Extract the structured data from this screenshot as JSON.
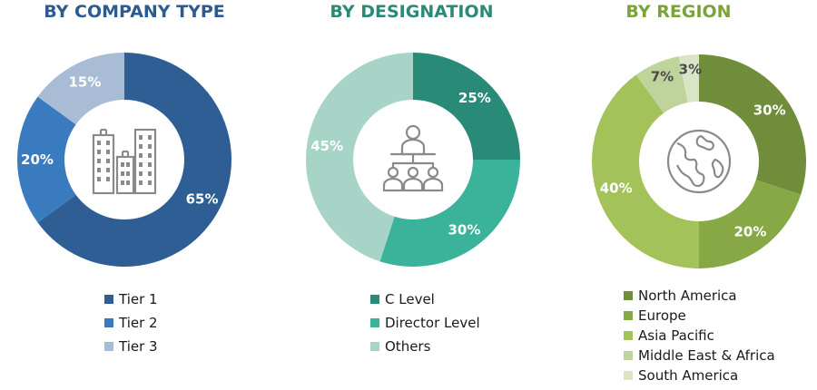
{
  "colors": {
    "company_title": "#2b5b8f",
    "designation_title": "#2a8a78",
    "region_title": "#7aa33a"
  },
  "chart_data": [
    {
      "type": "pie",
      "title": "BY COMPANY TYPE",
      "center_icon": "buildings-icon",
      "series": [
        {
          "name": "Tier 1",
          "value": 65,
          "label": "65%",
          "color": "#2e5e94"
        },
        {
          "name": "Tier 2",
          "value": 20,
          "label": "20%",
          "color": "#3a7bbf"
        },
        {
          "name": "Tier 3",
          "value": 15,
          "label": "15%",
          "color": "#a9bcd6"
        }
      ]
    },
    {
      "type": "pie",
      "title": "BY DESIGNATION",
      "center_icon": "presenter-audience-icon",
      "series": [
        {
          "name": "C Level",
          "value": 25,
          "label": "25%",
          "color": "#2a8a78"
        },
        {
          "name": "Director Level",
          "value": 30,
          "label": "30%",
          "color": "#3bb39a"
        },
        {
          "name": "Others",
          "value": 45,
          "label": "45%",
          "color": "#a8d4c8"
        }
      ]
    },
    {
      "type": "pie",
      "title": "BY REGION",
      "center_icon": "globe-icon",
      "series": [
        {
          "name": "North America",
          "value": 30,
          "label": "30%",
          "color": "#6f8d3a"
        },
        {
          "name": "Europe",
          "value": 20,
          "label": "20%",
          "color": "#86a845"
        },
        {
          "name": "Asia Pacific",
          "value": 40,
          "label": "40%",
          "color": "#a3c25a"
        },
        {
          "name": "Middle East & Africa",
          "value": 7,
          "label": "7%",
          "color": "#bfd49a"
        },
        {
          "name": "South America",
          "value": 3,
          "label": "3%",
          "color": "#d9e5c6"
        }
      ]
    }
  ]
}
